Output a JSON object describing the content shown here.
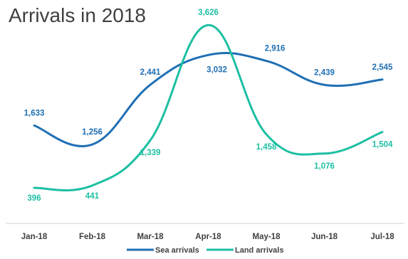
{
  "chart_data": {
    "type": "line",
    "title": "Arrivals in 2018",
    "categories": [
      "Jan-18",
      "Feb-18",
      "Mar-18",
      "Apr-18",
      "May-18",
      "Jun-18",
      "Jul-18"
    ],
    "series": [
      {
        "name": "Sea arrivals",
        "color": "#1f6fb4",
        "values": [
          1633,
          1256,
          2441,
          3032,
          2916,
          2439,
          2545
        ],
        "labels": [
          "1,633",
          "1,256",
          "2,441",
          "3,032",
          "2,916",
          "2,439",
          "2,545"
        ]
      },
      {
        "name": "Land arrivals",
        "color": "#1dbfa3",
        "values": [
          396,
          441,
          1339,
          3626,
          1458,
          1076,
          1504
        ],
        "labels": [
          "396",
          "441",
          "1,339",
          "3,626",
          "1,458",
          "1,076",
          "1,504"
        ]
      }
    ],
    "ylim": [
      0,
      3700
    ],
    "xlabel": "",
    "ylabel": "",
    "grid": false,
    "legend": "bottom-center"
  }
}
